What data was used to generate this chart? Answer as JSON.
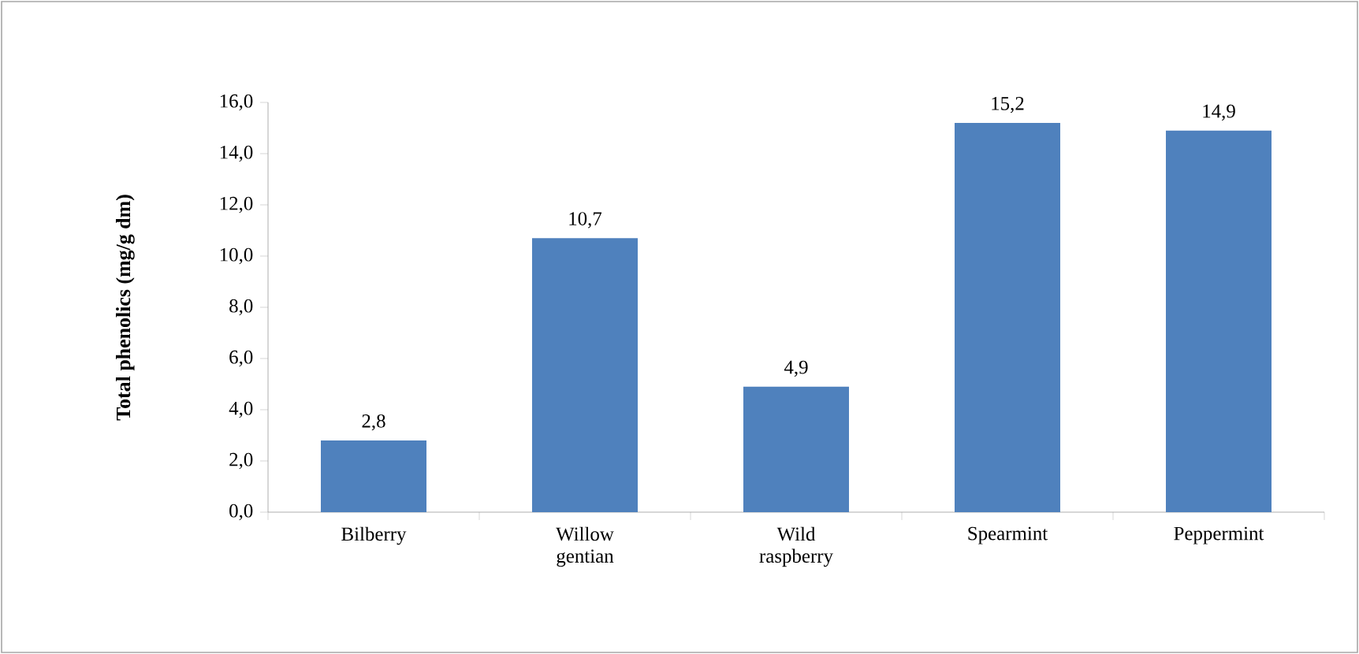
{
  "chart_data": {
    "type": "bar",
    "ylabel": "Total phenolics (mg/g dm)",
    "categories": [
      "Bilberry",
      "Willow gentian",
      "Wild raspberry",
      "Spearmint",
      "Peppermint"
    ],
    "values": [
      2.8,
      10.7,
      4.9,
      15.2,
      14.9
    ],
    "value_labels": [
      "2,8",
      "10,7",
      "4,9",
      "15,2",
      "14,9"
    ],
    "color": "#4f81bd",
    "ylim": [
      0,
      16
    ],
    "yticks": [
      {
        "value": 0,
        "label": "0,0"
      },
      {
        "value": 2,
        "label": "2,0"
      },
      {
        "value": 4,
        "label": "4,0"
      },
      {
        "value": 6,
        "label": "6,0"
      },
      {
        "value": 8,
        "label": "8,0"
      },
      {
        "value": 10,
        "label": "10,0"
      },
      {
        "value": 12,
        "label": "12,0"
      },
      {
        "value": 14,
        "label": "14,0"
      },
      {
        "value": 16,
        "label": "16,0"
      }
    ],
    "grid": false
  }
}
